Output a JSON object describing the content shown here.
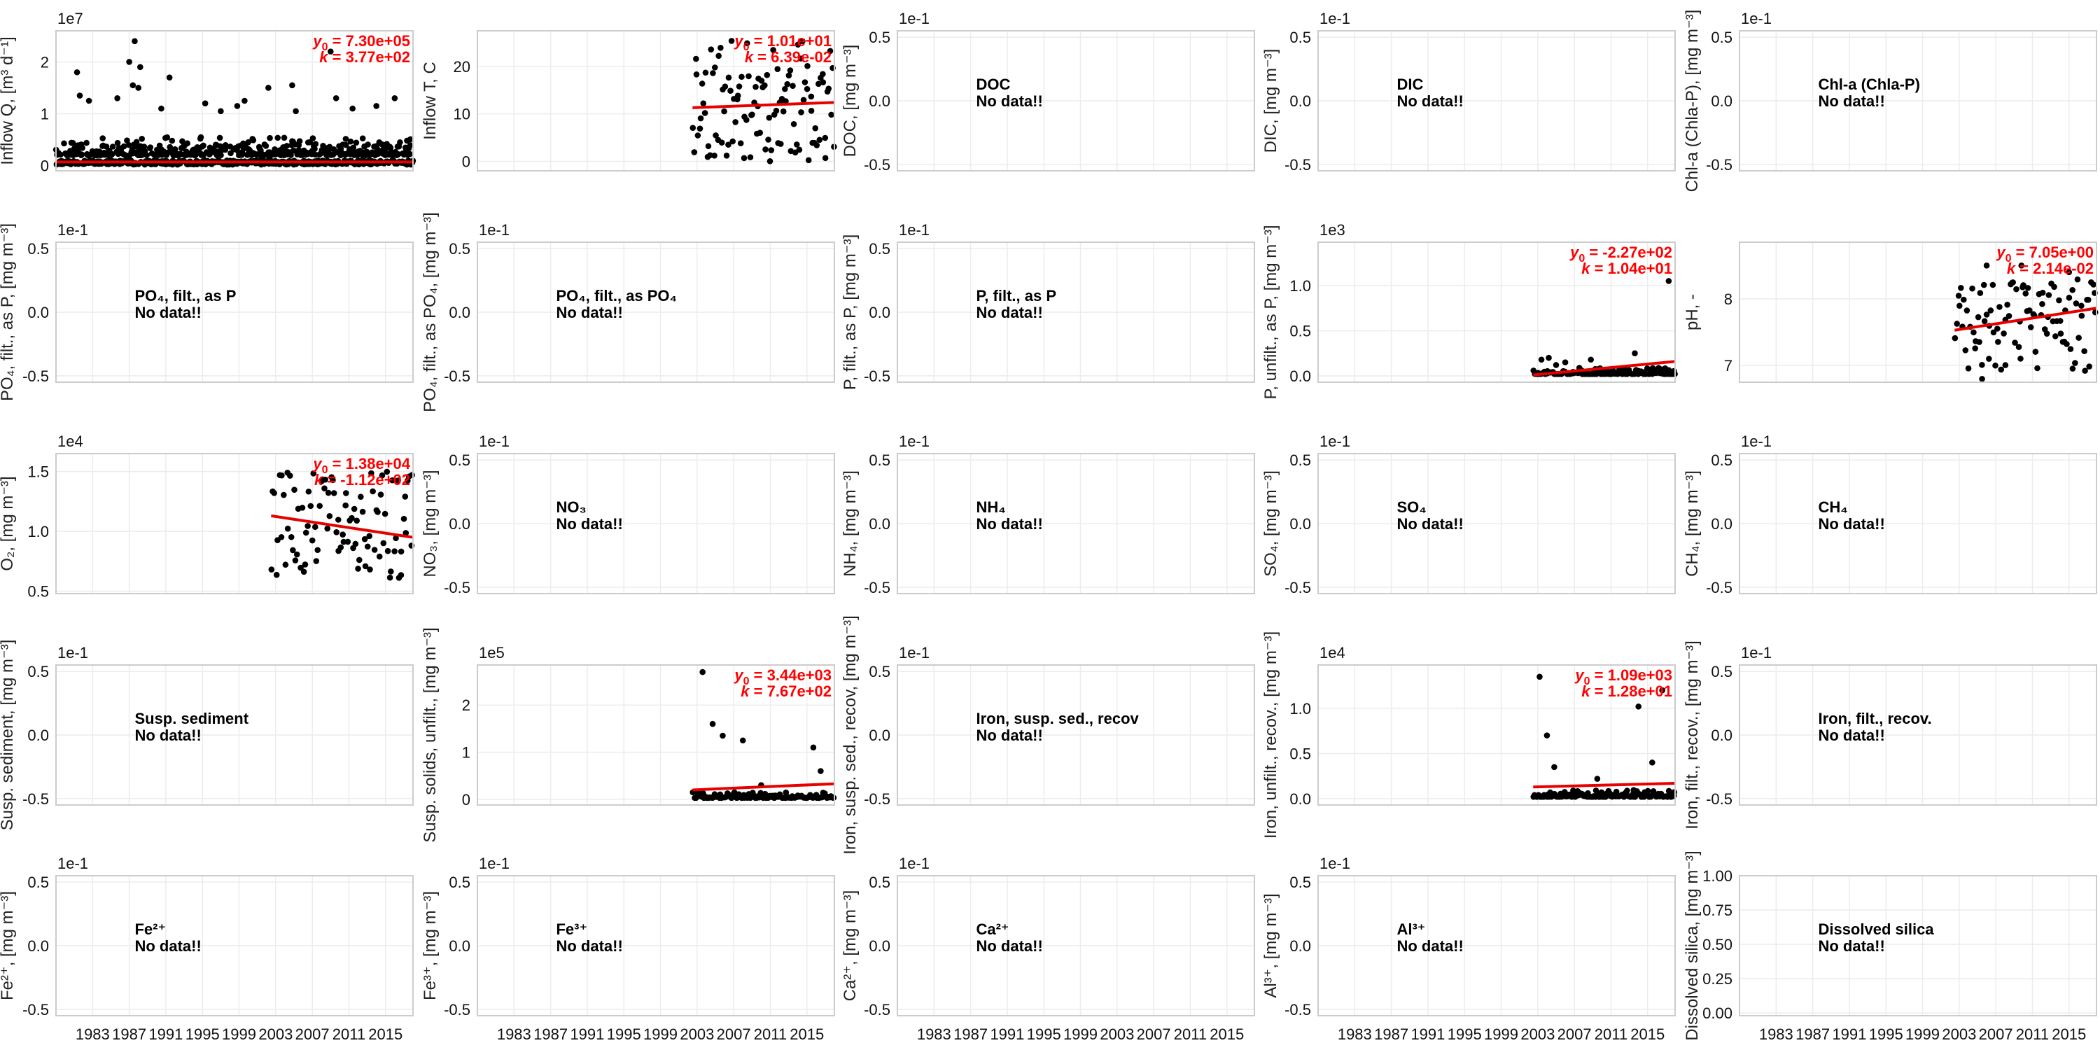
{
  "figure": {
    "colors": {
      "points": "#000000",
      "fit": "#e60000",
      "fit_text": "#ff0000",
      "grid": "#ececec",
      "frame": "#cccccc"
    },
    "xlim": [
      1979,
      2018
    ],
    "xticks": [
      1983,
      1987,
      1991,
      1995,
      1999,
      2003,
      2007,
      2011,
      2015
    ],
    "no_data_text": "No data!!"
  },
  "chart_data": [
    {
      "type": "scatter",
      "ylabel": "Inflow Q, [m³ d⁻¹]",
      "ylim": [
        -0.1,
        2.6
      ],
      "yticks": [
        0,
        1,
        2
      ],
      "tick_labels": [
        "0",
        "1",
        "2"
      ],
      "multiplier": "1e7",
      "data_range": [
        1979,
        2018
      ],
      "n_points": 820,
      "seed": 3,
      "dist": "q",
      "base": 0.2,
      "spread": 0.35,
      "outliers": [
        [
          1981.3,
          1.8
        ],
        [
          1981.6,
          1.35
        ],
        [
          1982.6,
          1.25
        ],
        [
          1985.7,
          1.3
        ],
        [
          1987.0,
          2.0
        ],
        [
          1987.6,
          2.4
        ],
        [
          1987.4,
          1.55
        ],
        [
          1988.0,
          1.5
        ],
        [
          1988.2,
          1.9
        ],
        [
          1990.5,
          1.1
        ],
        [
          1991.4,
          1.7
        ],
        [
          1995.3,
          1.2
        ],
        [
          1997.0,
          1.05
        ],
        [
          1998.8,
          1.15
        ],
        [
          1999.6,
          1.25
        ],
        [
          2002.2,
          1.5
        ],
        [
          2004.8,
          1.55
        ],
        [
          2005.2,
          1.05
        ],
        [
          2009.0,
          2.2
        ],
        [
          2009.6,
          1.3
        ],
        [
          2011.4,
          1.1
        ],
        [
          2014.0,
          1.15
        ],
        [
          2016.0,
          1.3
        ]
      ],
      "fit": [
        [
          1979,
          0.07
        ],
        [
          2018,
          0.07
        ]
      ],
      "y0": "7.30e+05",
      "k": "3.77e+02"
    },
    {
      "type": "scatter",
      "ylabel": "Inflow T, C",
      "ylim": [
        -2,
        27.5
      ],
      "yticks": [
        0,
        10,
        20
      ],
      "tick_labels": [
        "0",
        "10",
        "20"
      ],
      "multiplier": "",
      "data_range": [
        2002.5,
        2018
      ],
      "n_points": 110,
      "seed": 11,
      "dist": "uniform",
      "lo": 0,
      "hi": 25.5,
      "fit": [
        [
          2002.5,
          11.3
        ],
        [
          2018,
          12.4
        ]
      ],
      "y0": "1.01e+01",
      "k": "6.39e-02"
    },
    {
      "type": "scatter",
      "ylabel": "DOC, [mg m⁻³]",
      "ylim": [
        -0.055,
        0.055
      ],
      "yticks": [
        -0.05,
        0,
        0.05
      ],
      "tick_labels": [
        "-0.5",
        "0.0",
        "0.5"
      ],
      "multiplier": "1e-1",
      "empty": true,
      "label": "DOC"
    },
    {
      "type": "scatter",
      "ylabel": "DIC, [mg m⁻³]",
      "ylim": [
        -0.055,
        0.055
      ],
      "yticks": [
        -0.05,
        0,
        0.05
      ],
      "tick_labels": [
        "-0.5",
        "0.0",
        "0.5"
      ],
      "multiplier": "1e-1",
      "empty": true,
      "label": "DIC"
    },
    {
      "type": "scatter",
      "ylabel": "Chl-a (Chla-P), [mg m⁻³]",
      "ylim": [
        -0.055,
        0.055
      ],
      "yticks": [
        -0.05,
        0,
        0.05
      ],
      "tick_labels": [
        "-0.5",
        "0.0",
        "0.5"
      ],
      "multiplier": "1e-1",
      "empty": true,
      "label": "Chl-a (Chla-P)"
    },
    {
      "type": "scatter",
      "ylabel": "PO₄, filt., as P, [mg m⁻³]",
      "ylim": [
        -0.055,
        0.055
      ],
      "yticks": [
        -0.05,
        0,
        0.05
      ],
      "tick_labels": [
        "-0.5",
        "0.0",
        "0.5"
      ],
      "multiplier": "1e-1",
      "empty": true,
      "label": "PO₄, filt., as P"
    },
    {
      "type": "scatter",
      "ylabel": "PO₄, filt., as PO₄, [mg m⁻³]",
      "ylim": [
        -0.055,
        0.055
      ],
      "yticks": [
        -0.05,
        0,
        0.05
      ],
      "tick_labels": [
        "-0.5",
        "0.0",
        "0.5"
      ],
      "multiplier": "1e-1",
      "empty": true,
      "label": "PO₄, filt., as PO₄"
    },
    {
      "type": "scatter",
      "ylabel": "P, filt., as P, [mg m⁻³]",
      "ylim": [
        -0.055,
        0.055
      ],
      "yticks": [
        -0.05,
        0,
        0.05
      ],
      "tick_labels": [
        "-0.5",
        "0.0",
        "0.5"
      ],
      "multiplier": "1e-1",
      "empty": true,
      "label": "P, filt., as P"
    },
    {
      "type": "scatter",
      "ylabel": "P, unfilt., as P, [mg m⁻³]",
      "ylim": [
        -0.07,
        1.48
      ],
      "yticks": [
        0,
        0.5,
        1.0
      ],
      "tick_labels": [
        "0.0",
        "0.5",
        "1.0"
      ],
      "multiplier": "1e3",
      "data_range": [
        2002.5,
        2018
      ],
      "n_points": 120,
      "seed": 17,
      "dist": "skew",
      "base": 0.02,
      "spread": 0.07,
      "outliers": [
        [
          2003.4,
          0.18
        ],
        [
          2004.2,
          0.2
        ],
        [
          2005.0,
          0.12
        ],
        [
          2006.0,
          0.15
        ],
        [
          2008.8,
          0.18
        ],
        [
          2013.6,
          0.25
        ],
        [
          2017.3,
          1.05
        ]
      ],
      "fit": [
        [
          2002.5,
          0.01
        ],
        [
          2018,
          0.16
        ]
      ],
      "y0": "-2.27e+02",
      "k": "1.04e+01"
    },
    {
      "type": "scatter",
      "ylabel": "pH, -",
      "ylim": [
        6.75,
        8.85
      ],
      "yticks": [
        7,
        8
      ],
      "tick_labels": [
        "7",
        "8"
      ],
      "multiplier": "",
      "data_range": [
        2002.5,
        2018
      ],
      "n_points": 95,
      "seed": 23,
      "dist": "uniform",
      "lo": 6.9,
      "hi": 8.3,
      "outliers": [
        [
          2006.0,
          8.5
        ],
        [
          2009.8,
          8.5
        ],
        [
          2015.0,
          8.4
        ],
        [
          2005.5,
          6.8
        ]
      ],
      "fit": [
        [
          2002.5,
          7.53
        ],
        [
          2018,
          7.86
        ]
      ],
      "y0": "7.05e+00",
      "k": "2.14e-02"
    },
    {
      "type": "scatter",
      "ylabel": "O₂, [mg m⁻³]",
      "ylim": [
        0.48,
        1.65
      ],
      "yticks": [
        0.5,
        1.0,
        1.5
      ],
      "tick_labels": [
        "0.5",
        "1.0",
        "1.5"
      ],
      "multiplier": "1e4",
      "data_range": [
        2002.5,
        2018
      ],
      "n_points": 95,
      "seed": 31,
      "dist": "uniform",
      "lo": 0.6,
      "hi": 1.5,
      "fit": [
        [
          2002.5,
          1.13
        ],
        [
          2018,
          0.95
        ]
      ],
      "y0": "1.38e+04",
      "k": "-1.12e+02"
    },
    {
      "type": "scatter",
      "ylabel": "NO₃, [mg m⁻³]",
      "ylim": [
        -0.055,
        0.055
      ],
      "yticks": [
        -0.05,
        0,
        0.05
      ],
      "tick_labels": [
        "-0.5",
        "0.0",
        "0.5"
      ],
      "multiplier": "1e-1",
      "empty": true,
      "label": "NO₃"
    },
    {
      "type": "scatter",
      "ylabel": "NH₄, [mg m⁻³]",
      "ylim": [
        -0.055,
        0.055
      ],
      "yticks": [
        -0.05,
        0,
        0.05
      ],
      "tick_labels": [
        "-0.5",
        "0.0",
        "0.5"
      ],
      "multiplier": "1e-1",
      "empty": true,
      "label": "NH₄"
    },
    {
      "type": "scatter",
      "ylabel": "SO₄, [mg m⁻³]",
      "ylim": [
        -0.055,
        0.055
      ],
      "yticks": [
        -0.05,
        0,
        0.05
      ],
      "tick_labels": [
        "-0.5",
        "0.0",
        "0.5"
      ],
      "multiplier": "1e-1",
      "empty": true,
      "label": "SO₄"
    },
    {
      "type": "scatter",
      "ylabel": "CH₄, [mg m⁻³]",
      "ylim": [
        -0.055,
        0.055
      ],
      "yticks": [
        -0.05,
        0,
        0.05
      ],
      "tick_labels": [
        "-0.5",
        "0.0",
        "0.5"
      ],
      "multiplier": "1e-1",
      "empty": true,
      "label": "CH₄"
    },
    {
      "type": "scatter",
      "ylabel": "Susp. sediment, [mg m⁻³]",
      "ylim": [
        -0.055,
        0.055
      ],
      "yticks": [
        -0.05,
        0,
        0.05
      ],
      "tick_labels": [
        "-0.5",
        "0.0",
        "0.5"
      ],
      "multiplier": "1e-1",
      "empty": true,
      "label": "Susp. sediment"
    },
    {
      "type": "scatter",
      "ylabel": "Susp. solids, unfilt., [mg m⁻³]",
      "ylim": [
        -0.12,
        2.85
      ],
      "yticks": [
        0,
        1,
        2
      ],
      "tick_labels": [
        "0",
        "1",
        "2"
      ],
      "multiplier": "1e5",
      "data_range": [
        2002.5,
        2018
      ],
      "n_points": 120,
      "seed": 41,
      "dist": "skew",
      "base": 0.03,
      "spread": 0.12,
      "outliers": [
        [
          2003.6,
          2.7
        ],
        [
          2004.7,
          1.6
        ],
        [
          2005.8,
          1.35
        ],
        [
          2008.0,
          1.25
        ],
        [
          2015.7,
          1.1
        ],
        [
          2016.5,
          0.6
        ],
        [
          2010.0,
          0.3
        ]
      ],
      "fit": [
        [
          2002.5,
          0.2
        ],
        [
          2018,
          0.33
        ]
      ],
      "y0": "3.44e+03",
      "k": "7.67e+02"
    },
    {
      "type": "scatter",
      "ylabel": "Iron, susp. sed., recov, [mg m⁻³]",
      "ylim": [
        -0.055,
        0.055
      ],
      "yticks": [
        -0.05,
        0,
        0.05
      ],
      "tick_labels": [
        "-0.5",
        "0.0",
        "0.5"
      ],
      "multiplier": "1e-1",
      "empty": true,
      "label": "Iron, susp. sed., recov"
    },
    {
      "type": "scatter",
      "ylabel": "Iron, unfilt., recov., [mg m⁻³]",
      "ylim": [
        -0.07,
        1.48
      ],
      "yticks": [
        0,
        0.5,
        1.0
      ],
      "tick_labels": [
        "0.0",
        "0.5",
        "1.0"
      ],
      "multiplier": "1e4",
      "data_range": [
        2002.5,
        2018
      ],
      "n_points": 120,
      "seed": 53,
      "dist": "skew",
      "base": 0.02,
      "spread": 0.08,
      "outliers": [
        [
          2003.2,
          1.35
        ],
        [
          2004.0,
          0.7
        ],
        [
          2004.8,
          0.35
        ],
        [
          2014.0,
          1.02
        ],
        [
          2016.6,
          1.2
        ],
        [
          2015.5,
          0.4
        ],
        [
          2009.5,
          0.22
        ]
      ],
      "fit": [
        [
          2002.5,
          0.13
        ],
        [
          2018,
          0.17
        ]
      ],
      "y0": "1.09e+03",
      "k": "1.28e+01"
    },
    {
      "type": "scatter",
      "ylabel": "Iron, filt., recov., [mg m⁻³]",
      "ylim": [
        -0.055,
        0.055
      ],
      "yticks": [
        -0.05,
        0,
        0.05
      ],
      "tick_labels": [
        "-0.5",
        "0.0",
        "0.5"
      ],
      "multiplier": "1e-1",
      "empty": true,
      "label": "Iron, filt., recov."
    },
    {
      "type": "scatter",
      "ylabel": "Fe²⁺, [mg m⁻³]",
      "ylim": [
        -0.055,
        0.055
      ],
      "yticks": [
        -0.05,
        0,
        0.05
      ],
      "tick_labels": [
        "-0.5",
        "0.0",
        "0.5"
      ],
      "multiplier": "1e-1",
      "empty": true,
      "label": "Fe²⁺"
    },
    {
      "type": "scatter",
      "ylabel": "Fe³⁺, [mg m⁻³]",
      "ylim": [
        -0.055,
        0.055
      ],
      "yticks": [
        -0.05,
        0,
        0.05
      ],
      "tick_labels": [
        "-0.5",
        "0.0",
        "0.5"
      ],
      "multiplier": "1e-1",
      "empty": true,
      "label": "Fe³⁺"
    },
    {
      "type": "scatter",
      "ylabel": "Ca²⁺, [mg m⁻³]",
      "ylim": [
        -0.055,
        0.055
      ],
      "yticks": [
        -0.05,
        0,
        0.05
      ],
      "tick_labels": [
        "-0.5",
        "0.0",
        "0.5"
      ],
      "multiplier": "1e-1",
      "empty": true,
      "label": "Ca²⁺"
    },
    {
      "type": "scatter",
      "ylabel": "Al³⁺, [mg m⁻³]",
      "ylim": [
        -0.055,
        0.055
      ],
      "yticks": [
        -0.05,
        0,
        0.05
      ],
      "tick_labels": [
        "-0.5",
        "0.0",
        "0.5"
      ],
      "multiplier": "1e-1",
      "empty": true,
      "label": "Al³⁺"
    },
    {
      "type": "scatter",
      "ylabel": "Dissolved silica, [mg m⁻³]",
      "ylim": [
        -0.02,
        1.0
      ],
      "yticks": [
        0,
        0.25,
        0.5,
        0.75,
        1.0
      ],
      "tick_labels": [
        "0.00",
        "0.25",
        "0.50",
        "0.75",
        "1.00"
      ],
      "multiplier": "",
      "empty": true,
      "label": "Dissolved silica"
    }
  ]
}
